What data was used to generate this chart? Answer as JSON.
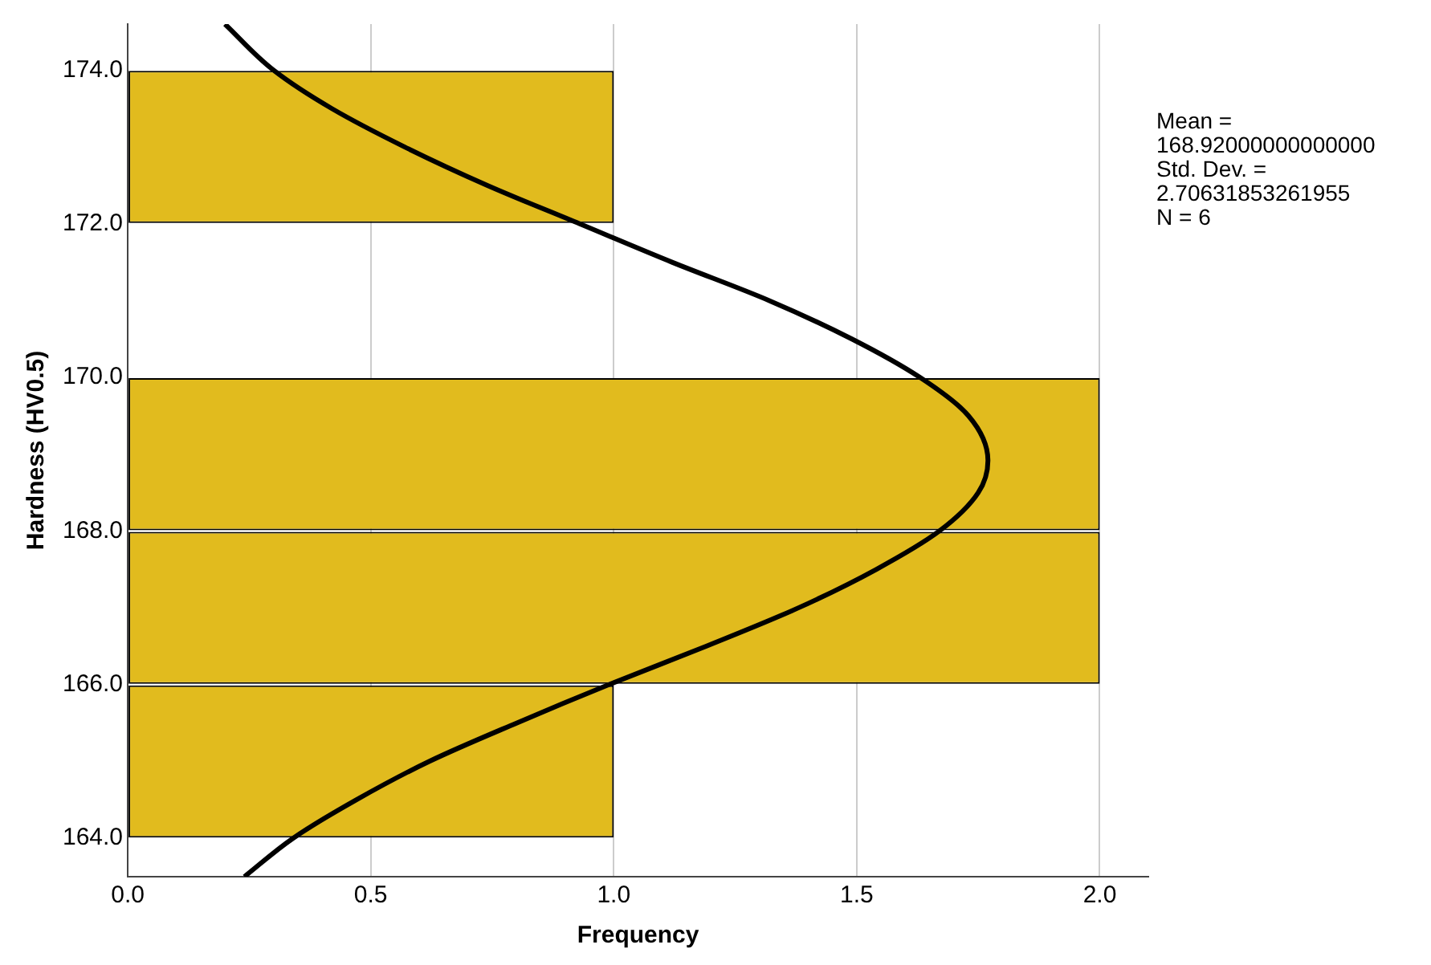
{
  "chart_data": {
    "type": "histogram",
    "orientation": "horizontal",
    "color": "#e1bb1e",
    "bins": [
      164,
      166,
      168,
      170,
      172,
      174
    ],
    "values": [
      1,
      2,
      2,
      0,
      1
    ],
    "series": [
      {
        "type": "line",
        "color": "#000000",
        "x": [
          163.5,
          164,
          164.5,
          165,
          165.5,
          166,
          166.5,
          167,
          167.5,
          168,
          168.5,
          168.92,
          169.5,
          170,
          170.5,
          171,
          171.5,
          172,
          172.5,
          173,
          173.5,
          174,
          174.6
        ],
        "values": [
          0.24,
          0.34,
          0.47,
          0.62,
          0.8,
          0.99,
          1.19,
          1.38,
          1.54,
          1.67,
          1.75,
          1.77,
          1.73,
          1.63,
          1.49,
          1.32,
          1.12,
          0.93,
          0.74,
          0.57,
          0.42,
          0.3,
          0.2
        ]
      }
    ],
    "xlabel": "Frequency",
    "ylabel": "Hardness (HV0.5)",
    "xlim": [
      0,
      2.1
    ],
    "xticks": [
      {
        "value": 0,
        "label": "0.0"
      },
      {
        "value": 0.5,
        "label": "0.5"
      },
      {
        "value": 1,
        "label": "1.0"
      },
      {
        "value": 1.5,
        "label": "1.5"
      },
      {
        "value": 2,
        "label": "2.0"
      }
    ],
    "ylim": [
      163.5,
      174.6
    ],
    "yticks": [
      {
        "value": 164,
        "label": "164.0"
      },
      {
        "value": 166,
        "label": "166.0"
      },
      {
        "value": 168,
        "label": "168.0"
      },
      {
        "value": 170,
        "label": "170.0"
      },
      {
        "value": 172,
        "label": "172.0"
      },
      {
        "value": 174,
        "label": "174.0"
      }
    ],
    "grid": "x",
    "legend": false,
    "marker": "none",
    "line_style": "solid",
    "annotations": [
      "Mean =\n168.92000000000000\nStd. Dev. =\n2.70631853261955\nN = 6"
    ]
  }
}
